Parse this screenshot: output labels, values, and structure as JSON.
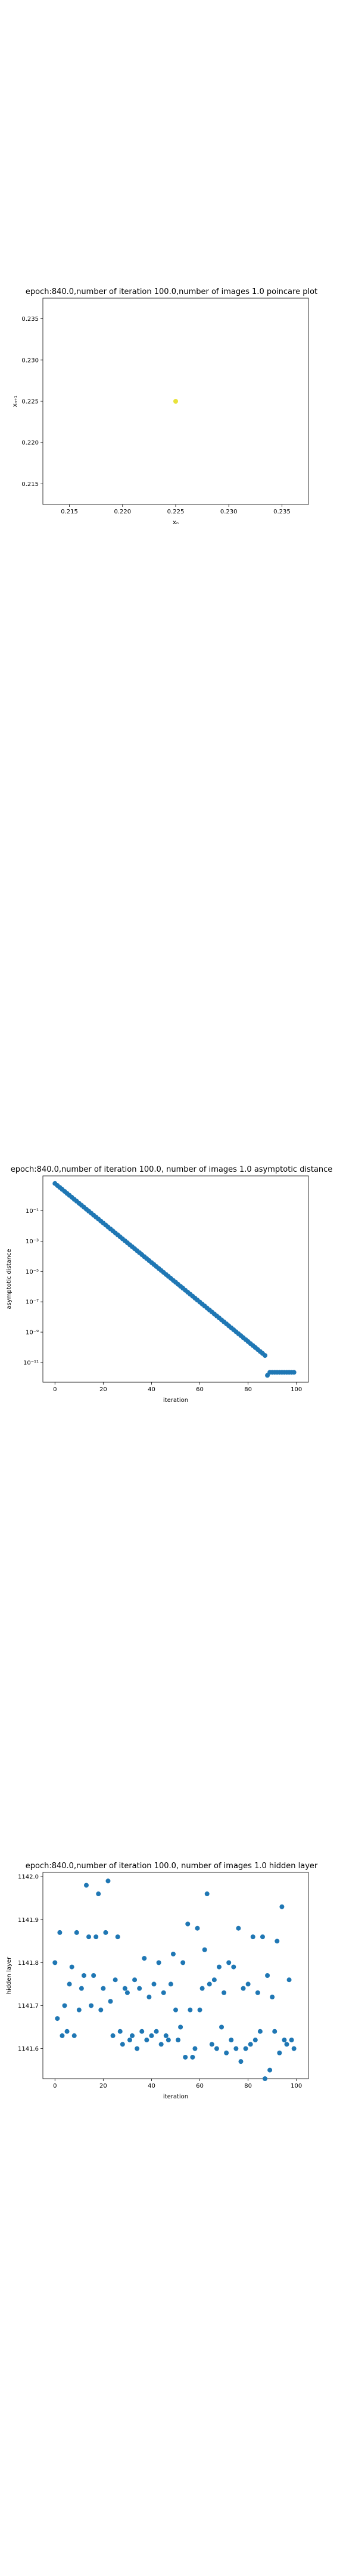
{
  "chart_data": [
    {
      "type": "scatter",
      "title": "epoch:840.0,number of iteration 100.0,number of images 1.0 poincare plot",
      "xlabel": "xₙ",
      "ylabel": "xₙ₊₁",
      "xlim": [
        0.2125,
        0.2375
      ],
      "ylim": [
        0.2125,
        0.2375
      ],
      "xticks": [
        "0.215",
        "0.220",
        "0.225",
        "0.230",
        "0.235"
      ],
      "yticks": [
        "0.215",
        "0.220",
        "0.225",
        "0.230",
        "0.235"
      ],
      "grid": false,
      "points": [
        {
          "x": 0.225,
          "y": 0.225
        }
      ],
      "point_color": "#e8e23a"
    },
    {
      "type": "scatter",
      "title": "epoch:840.0,number of iteration 100.0,  number of images 1.0 asymptotic distance",
      "xlabel": "iteration",
      "ylabel": "asymptotic distance",
      "yscale": "log",
      "xlim": [
        -5,
        105
      ],
      "ylim": [
        -12.3,
        1.3
      ],
      "xticks": [
        "0",
        "20",
        "40",
        "60",
        "80",
        "100"
      ],
      "yticks": [
        "10⁻¹",
        "10⁻³",
        "10⁻⁵",
        "10⁻⁷",
        "10⁻⁹",
        "10⁻¹¹"
      ],
      "grid": false,
      "log10_start": 0.8,
      "log10_slope": -0.1303,
      "steps": 87,
      "plateau_log10": -11.65,
      "dip_index": 88,
      "dip_log10": -11.85,
      "last_index": 99,
      "point_color": "#1f77b4"
    },
    {
      "type": "scatter",
      "title": "epoch:840.0,number of iteration 100.0,  number of images 1.0 hidden layer",
      "xlabel": "iteration",
      "ylabel": "hidden layer",
      "xlim": [
        -5,
        105
      ],
      "ylim": [
        1141.53,
        1142.01
      ],
      "xticks": [
        "0",
        "20",
        "40",
        "60",
        "80",
        "100"
      ],
      "yticks": [
        "1141.6",
        "1141.7",
        "1141.8",
        "1141.9",
        "1142.0"
      ],
      "grid": false,
      "point_color": "#1f77b4",
      "x": [
        0,
        1,
        2,
        3,
        4,
        5,
        6,
        7,
        8,
        9,
        10,
        11,
        12,
        13,
        14,
        15,
        16,
        17,
        18,
        19,
        20,
        21,
        22,
        23,
        24,
        25,
        26,
        27,
        28,
        29,
        30,
        31,
        32,
        33,
        34,
        35,
        36,
        37,
        38,
        39,
        40,
        41,
        42,
        43,
        44,
        45,
        46,
        47,
        48,
        49,
        50,
        51,
        52,
        53,
        54,
        55,
        56,
        57,
        58,
        59,
        60,
        61,
        62,
        63,
        64,
        65,
        66,
        67,
        68,
        69,
        70,
        71,
        72,
        73,
        74,
        75,
        76,
        77,
        78,
        79,
        80,
        81,
        82,
        83,
        84,
        85,
        86,
        87,
        88,
        89,
        90,
        91,
        92,
        93,
        94,
        95,
        96,
        97,
        98,
        99
      ],
      "y": [
        1141.8,
        1141.67,
        1141.87,
        1141.63,
        1141.7,
        1141.64,
        1141.75,
        1141.79,
        1141.63,
        1141.87,
        1141.69,
        1141.74,
        1141.77,
        1141.98,
        1141.86,
        1141.7,
        1141.77,
        1141.86,
        1141.96,
        1141.69,
        1141.74,
        1141.87,
        1141.99,
        1141.71,
        1141.63,
        1141.76,
        1141.86,
        1141.64,
        1141.61,
        1141.74,
        1141.73,
        1141.62,
        1141.63,
        1141.76,
        1141.6,
        1141.74,
        1141.64,
        1141.81,
        1141.62,
        1141.72,
        1141.63,
        1141.75,
        1141.64,
        1141.8,
        1141.61,
        1141.73,
        1141.63,
        1141.62,
        1141.75,
        1141.82,
        1141.69,
        1141.62,
        1141.65,
        1141.8,
        1141.58,
        1141.89,
        1141.69,
        1141.58,
        1141.6,
        1141.88,
        1141.69,
        1141.74,
        1141.83,
        1141.96,
        1141.75,
        1141.61,
        1141.76,
        1141.6,
        1141.79,
        1141.65,
        1141.73,
        1141.59,
        1141.8,
        1141.62,
        1141.79,
        1141.6,
        1141.88,
        1141.57,
        1141.74,
        1141.6,
        1141.75,
        1141.61,
        1141.86,
        1141.62,
        1141.73,
        1141.64,
        1141.86,
        1141.53,
        1141.77,
        1141.55,
        1141.72,
        1141.64,
        1141.85,
        1141.59,
        1141.93,
        1141.62,
        1141.61,
        1141.76,
        1141.62,
        1141.6
      ]
    }
  ]
}
